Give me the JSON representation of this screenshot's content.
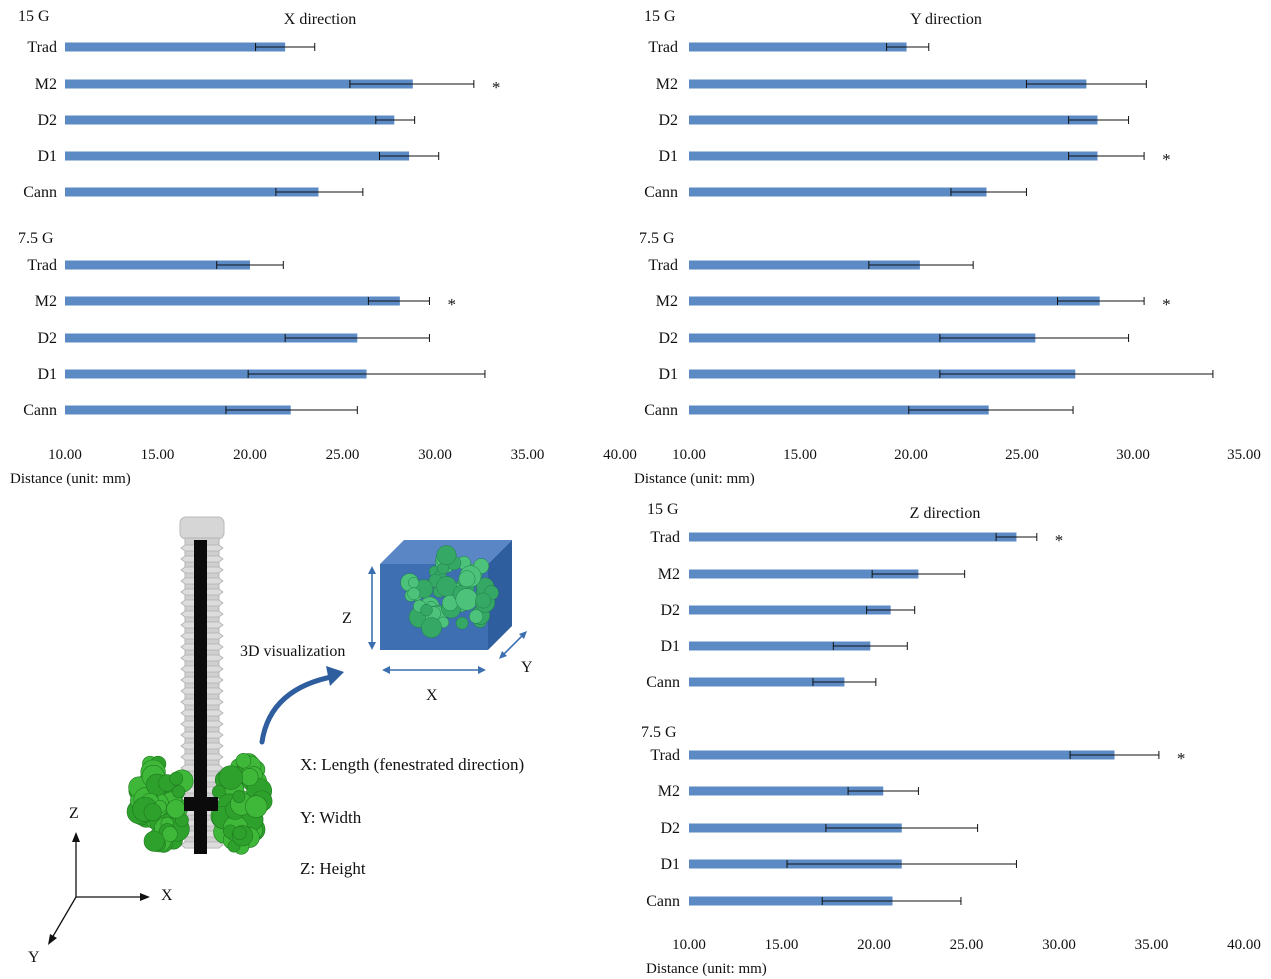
{
  "chart_data": [
    {
      "id": "x",
      "type": "bar",
      "orientation": "horizontal",
      "title": "X direction",
      "xlabel": "Distance (unit: mm)",
      "xlim": [
        10,
        40
      ],
      "ticks": [
        "10.00",
        "15.00",
        "20.00",
        "25.00",
        "30.00",
        "35.00",
        "40.00"
      ],
      "color": "#5b8ac5",
      "groups": [
        {
          "label": "15 G",
          "bars": [
            {
              "category": "Trad",
              "value": 21.9,
              "low": 20.3,
              "high": 23.5
            },
            {
              "category": "M2",
              "value": 28.8,
              "low": 25.4,
              "high": 32.1,
              "star": "*"
            },
            {
              "category": "D2",
              "value": 27.8,
              "low": 26.8,
              "high": 28.9
            },
            {
              "category": "D1",
              "value": 28.6,
              "low": 27.0,
              "high": 30.2
            },
            {
              "category": "Cann",
              "value": 23.7,
              "low": 21.4,
              "high": 26.1
            }
          ]
        },
        {
          "label": "7.5 G",
          "bars": [
            {
              "category": "Trad",
              "value": 20.0,
              "low": 18.2,
              "high": 21.8
            },
            {
              "category": "M2",
              "value": 28.1,
              "low": 26.4,
              "high": 29.7,
              "star": "*"
            },
            {
              "category": "D2",
              "value": 25.8,
              "low": 21.9,
              "high": 29.7
            },
            {
              "category": "D1",
              "value": 26.3,
              "low": 19.9,
              "high": 32.7
            },
            {
              "category": "Cann",
              "value": 22.2,
              "low": 18.7,
              "high": 25.8
            }
          ]
        }
      ]
    },
    {
      "id": "y",
      "type": "bar",
      "orientation": "horizontal",
      "title": "Y direction",
      "xlabel": "Distance (unit: mm)",
      "xlim": [
        10,
        35
      ],
      "ticks": [
        "10.00",
        "15.00",
        "20.00",
        "25.00",
        "30.00",
        "35.00"
      ],
      "color": "#5b8ac5",
      "groups": [
        {
          "label": "15 G",
          "bars": [
            {
              "category": "Trad",
              "value": 19.8,
              "low": 18.9,
              "high": 20.8
            },
            {
              "category": "M2",
              "value": 27.9,
              "low": 25.2,
              "high": 30.6
            },
            {
              "category": "D2",
              "value": 28.4,
              "low": 27.1,
              "high": 29.8
            },
            {
              "category": "D1",
              "value": 28.4,
              "low": 27.1,
              "high": 30.5,
              "star": "*"
            },
            {
              "category": "Cann",
              "value": 23.4,
              "low": 21.8,
              "high": 25.2
            }
          ]
        },
        {
          "label": "7.5 G",
          "bars": [
            {
              "category": "Trad",
              "value": 20.4,
              "low": 18.1,
              "high": 22.8
            },
            {
              "category": "M2",
              "value": 28.5,
              "low": 26.6,
              "high": 30.5,
              "star": "*"
            },
            {
              "category": "D2",
              "value": 25.6,
              "low": 21.3,
              "high": 29.8
            },
            {
              "category": "D1",
              "value": 27.4,
              "low": 21.3,
              "high": 33.6
            },
            {
              "category": "Cann",
              "value": 23.5,
              "low": 19.9,
              "high": 27.3
            }
          ]
        }
      ]
    },
    {
      "id": "z",
      "type": "bar",
      "orientation": "horizontal",
      "title": "Z direction",
      "xlabel": "Distance (unit: mm)",
      "xlim": [
        10,
        40
      ],
      "ticks": [
        "10.00",
        "15.00",
        "20.00",
        "25.00",
        "30.00",
        "35.00",
        "40.00"
      ],
      "color": "#5b8ac5",
      "groups": [
        {
          "label": "15 G",
          "bars": [
            {
              "category": "Trad",
              "value": 27.7,
              "low": 26.6,
              "high": 28.8,
              "star": "*"
            },
            {
              "category": "M2",
              "value": 22.4,
              "low": 19.9,
              "high": 24.9
            },
            {
              "category": "D2",
              "value": 20.9,
              "low": 19.6,
              "high": 22.2
            },
            {
              "category": "D1",
              "value": 19.8,
              "low": 17.8,
              "high": 21.8
            },
            {
              "category": "Cann",
              "value": 18.4,
              "low": 16.7,
              "high": 20.1
            }
          ]
        },
        {
          "label": "7.5 G",
          "bars": [
            {
              "category": "Trad",
              "value": 33.0,
              "low": 30.6,
              "high": 35.4,
              "star": "*"
            },
            {
              "category": "M2",
              "value": 20.5,
              "low": 18.6,
              "high": 22.4
            },
            {
              "category": "D2",
              "value": 21.5,
              "low": 17.4,
              "high": 25.6
            },
            {
              "category": "D1",
              "value": 21.5,
              "low": 15.3,
              "high": 27.7
            },
            {
              "category": "Cann",
              "value": 21.0,
              "low": 17.2,
              "high": 24.7
            }
          ]
        }
      ]
    }
  ],
  "illustration": {
    "box_axis_z": "Z",
    "box_axis_x": "X",
    "box_axis_y": "Y",
    "arrow_label": "3D visualization",
    "legend": [
      "X: Length (fenestrated direction)",
      "Y: Width",
      "Z: Height"
    ],
    "frame_axis_z": "Z",
    "frame_axis_x": "X",
    "frame_axis_y": "Y",
    "colors": {
      "bone_cement": "#3fb83a",
      "screw": "#cfcfcf",
      "cube": "#3c6fb0"
    }
  }
}
